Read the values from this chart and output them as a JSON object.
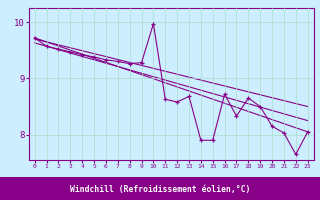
{
  "title": "",
  "xlabel": "Windchill (Refroidissement éolien,°C)",
  "ylabel": "",
  "bg_color": "#cceeff",
  "label_bar_color": "#880088",
  "line_color": "#880088",
  "xlim": [
    -0.5,
    23.5
  ],
  "ylim": [
    7.55,
    10.25
  ],
  "yticks": [
    8,
    9,
    10
  ],
  "xticks": [
    0,
    1,
    2,
    3,
    4,
    5,
    6,
    7,
    8,
    9,
    10,
    11,
    12,
    13,
    14,
    15,
    16,
    17,
    18,
    19,
    20,
    21,
    22,
    23
  ],
  "scatter_x": [
    0,
    1,
    2,
    3,
    4,
    5,
    6,
    7,
    8,
    9,
    10,
    11,
    12,
    13,
    14,
    15,
    16,
    17,
    18,
    19,
    20,
    21,
    22,
    23
  ],
  "scatter_y": [
    9.72,
    9.57,
    9.52,
    9.47,
    9.42,
    9.38,
    9.33,
    9.3,
    9.26,
    9.28,
    9.97,
    8.63,
    8.58,
    8.68,
    7.9,
    7.9,
    8.72,
    8.33,
    8.65,
    8.5,
    8.15,
    8.03,
    7.65,
    8.05
  ],
  "line1_x": [
    0,
    23
  ],
  "line1_y": [
    9.72,
    8.05
  ],
  "line2_x": [
    0,
    23
  ],
  "line2_y": [
    9.7,
    8.5
  ],
  "line3_x": [
    0,
    23
  ],
  "line3_y": [
    9.63,
    8.25
  ],
  "grid_color": "#aaddcc",
  "marker": "+"
}
